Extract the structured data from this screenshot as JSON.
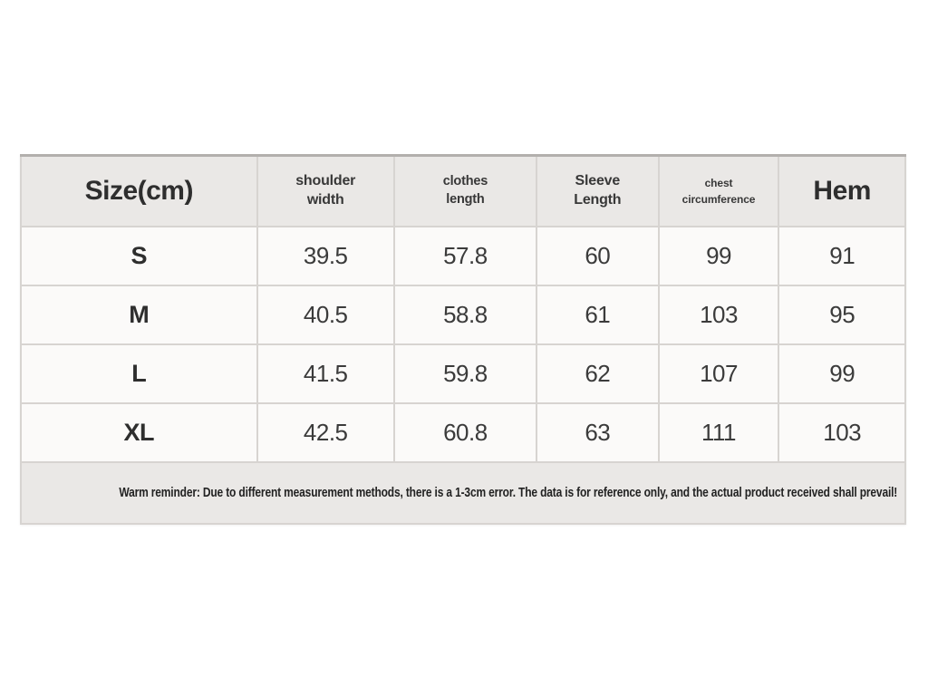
{
  "table": {
    "columns": [
      {
        "label": "Size(cm)"
      },
      {
        "label": "shoulder\nwidth"
      },
      {
        "label": "clothes\nlength"
      },
      {
        "label": "Sleeve\nLength"
      },
      {
        "label": "chest\ncircumference"
      },
      {
        "label": "Hem"
      }
    ],
    "rows": [
      [
        "S",
        "39.5",
        "57.8",
        "60",
        "99",
        "91"
      ],
      [
        "M",
        "40.5",
        "58.8",
        "61",
        "103",
        "95"
      ],
      [
        "L",
        "41.5",
        "59.8",
        "62",
        "107",
        "99"
      ],
      [
        "XL",
        "42.5",
        "60.8",
        "63",
        "111",
        "103"
      ]
    ],
    "reminder": "Warm reminder: Due to different measurement methods, there is a 1-3cm error. The data is for reference only, and the actual product received shall prevail!"
  },
  "colors": {
    "page_bg": "#ffffff",
    "header_bg": "#eae8e6",
    "cell_bg": "#fbfaf9",
    "footer_bg": "#eae8e6",
    "border": "#d7d4d1",
    "text": "#383838"
  },
  "chart_data": {
    "type": "table",
    "columns": [
      "Size(cm)",
      "shoulder width",
      "clothes length",
      "Sleeve Length",
      "chest circumference",
      "Hem"
    ],
    "rows": [
      [
        "S",
        39.5,
        57.8,
        60,
        99,
        91
      ],
      [
        "M",
        40.5,
        58.8,
        61,
        103,
        95
      ],
      [
        "L",
        41.5,
        59.8,
        62,
        107,
        99
      ],
      [
        "XL",
        42.5,
        60.8,
        63,
        111,
        103
      ]
    ],
    "note": "Warm reminder: Due to different measurement methods, there is a 1-3cm error. The data is for reference only, and the actual product received shall prevail!"
  }
}
